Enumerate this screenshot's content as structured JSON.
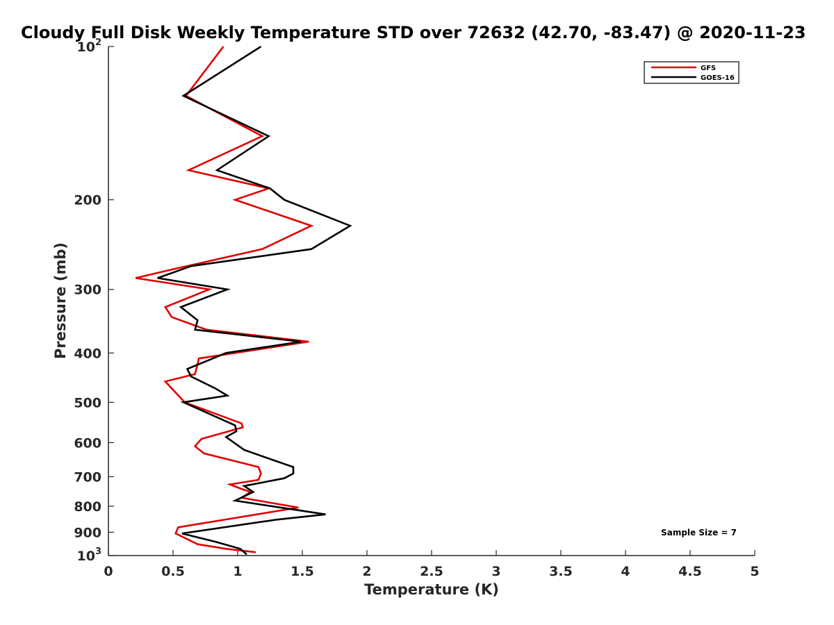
{
  "chart_data": {
    "type": "line",
    "title": "Cloudy Full Disk Weekly Temperature STD over 72632 (42.70, -83.47) @ 2020-11-23",
    "xlabel": "Temperature (K)",
    "ylabel": "Pressure (mb)",
    "xlim": [
      0,
      5
    ],
    "ylim": [
      100,
      1000
    ],
    "y_scale": "log",
    "y_reversed": true,
    "x_ticks": [
      "0",
      "0.5",
      "1",
      "1.5",
      "2",
      "2.5",
      "3",
      "3.5",
      "4",
      "4.5",
      "5"
    ],
    "x_tick_values": [
      0,
      0.5,
      1,
      1.5,
      2,
      2.5,
      3,
      3.5,
      4,
      4.5,
      5
    ],
    "y_ticks": [
      {
        "value": 100,
        "base": "10",
        "exp": "2"
      },
      {
        "value": 200,
        "label": "200"
      },
      {
        "value": 300,
        "label": "300"
      },
      {
        "value": 400,
        "label": "400"
      },
      {
        "value": 500,
        "label": "500"
      },
      {
        "value": 600,
        "label": "600"
      },
      {
        "value": 700,
        "label": "700"
      },
      {
        "value": 800,
        "label": "800"
      },
      {
        "value": 900,
        "label": "900"
      },
      {
        "value": 1000,
        "base": "10",
        "exp": "3"
      }
    ],
    "legend_position": "top-right",
    "grid": false,
    "annotation": "Sample Size = 7",
    "series": [
      {
        "name": "GFS",
        "color": "#e00000",
        "points": [
          {
            "t": 0.89,
            "p": 100
          },
          {
            "t": 0.6,
            "p": 125
          },
          {
            "t": 1.19,
            "p": 150
          },
          {
            "t": 0.62,
            "p": 175
          },
          {
            "t": 1.24,
            "p": 190
          },
          {
            "t": 0.98,
            "p": 200
          },
          {
            "t": 1.57,
            "p": 225
          },
          {
            "t": 1.19,
            "p": 250
          },
          {
            "t": 0.47,
            "p": 275
          },
          {
            "t": 0.21,
            "p": 285
          },
          {
            "t": 0.78,
            "p": 300
          },
          {
            "t": 0.44,
            "p": 325
          },
          {
            "t": 0.49,
            "p": 340
          },
          {
            "t": 0.76,
            "p": 360
          },
          {
            "t": 1.55,
            "p": 380
          },
          {
            "t": 0.7,
            "p": 410
          },
          {
            "t": 0.67,
            "p": 440
          },
          {
            "t": 0.44,
            "p": 455
          },
          {
            "t": 0.59,
            "p": 500
          },
          {
            "t": 1.03,
            "p": 550
          },
          {
            "t": 1.04,
            "p": 560
          },
          {
            "t": 0.72,
            "p": 590
          },
          {
            "t": 0.67,
            "p": 610
          },
          {
            "t": 0.74,
            "p": 630
          },
          {
            "t": 1.16,
            "p": 670
          },
          {
            "t": 1.18,
            "p": 690
          },
          {
            "t": 1.16,
            "p": 710
          },
          {
            "t": 0.94,
            "p": 725
          },
          {
            "t": 1.03,
            "p": 740
          },
          {
            "t": 1.1,
            "p": 750
          },
          {
            "t": 1.03,
            "p": 770
          },
          {
            "t": 1.47,
            "p": 805
          },
          {
            "t": 0.54,
            "p": 880
          },
          {
            "t": 0.52,
            "p": 905
          },
          {
            "t": 0.69,
            "p": 950
          },
          {
            "t": 0.91,
            "p": 970
          },
          {
            "t": 1.14,
            "p": 985
          }
        ]
      },
      {
        "name": "GOES-16",
        "color": "#000000",
        "points": [
          {
            "t": 1.18,
            "p": 100
          },
          {
            "t": 0.58,
            "p": 125
          },
          {
            "t": 1.24,
            "p": 150
          },
          {
            "t": 0.84,
            "p": 175
          },
          {
            "t": 1.25,
            "p": 190
          },
          {
            "t": 1.36,
            "p": 200
          },
          {
            "t": 1.87,
            "p": 225
          },
          {
            "t": 1.57,
            "p": 250
          },
          {
            "t": 0.64,
            "p": 270
          },
          {
            "t": 0.38,
            "p": 285
          },
          {
            "t": 0.92,
            "p": 300
          },
          {
            "t": 0.56,
            "p": 325
          },
          {
            "t": 0.69,
            "p": 345
          },
          {
            "t": 0.67,
            "p": 360
          },
          {
            "t": 1.49,
            "p": 380
          },
          {
            "t": 0.91,
            "p": 400
          },
          {
            "t": 0.61,
            "p": 430
          },
          {
            "t": 0.64,
            "p": 445
          },
          {
            "t": 0.83,
            "p": 470
          },
          {
            "t": 0.92,
            "p": 485
          },
          {
            "t": 0.58,
            "p": 500
          },
          {
            "t": 0.98,
            "p": 555
          },
          {
            "t": 0.99,
            "p": 570
          },
          {
            "t": 0.91,
            "p": 585
          },
          {
            "t": 1.05,
            "p": 620
          },
          {
            "t": 1.28,
            "p": 650
          },
          {
            "t": 1.43,
            "p": 670
          },
          {
            "t": 1.43,
            "p": 690
          },
          {
            "t": 1.36,
            "p": 705
          },
          {
            "t": 1.05,
            "p": 730
          },
          {
            "t": 1.12,
            "p": 750
          },
          {
            "t": 0.98,
            "p": 780
          },
          {
            "t": 1.68,
            "p": 830
          },
          {
            "t": 1.3,
            "p": 850
          },
          {
            "t": 0.57,
            "p": 905
          },
          {
            "t": 0.83,
            "p": 940
          },
          {
            "t": 1.02,
            "p": 970
          },
          {
            "t": 1.07,
            "p": 995
          }
        ]
      }
    ]
  }
}
